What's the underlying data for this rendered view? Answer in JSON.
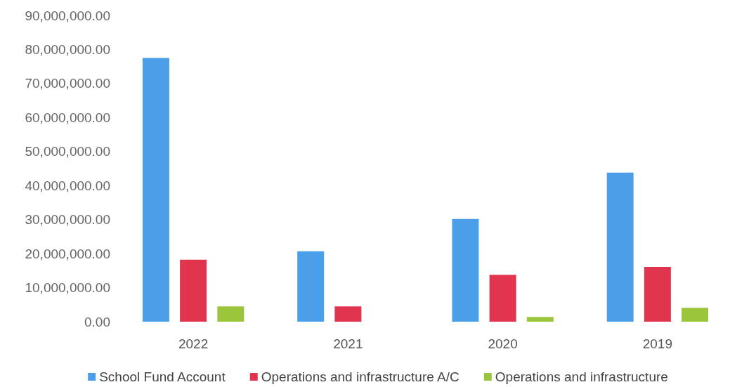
{
  "chart_data": {
    "type": "bar",
    "categories": [
      "2022",
      "2021",
      "2020",
      "2019"
    ],
    "series": [
      {
        "name": "School Fund Account",
        "color": "#4a9fe8",
        "values": [
          77500000,
          20700000,
          30200000,
          43800000
        ]
      },
      {
        "name": "Operations and infrastructure A/C",
        "color": "#e0344f",
        "values": [
          18200000,
          4500000,
          13800000,
          16100000
        ]
      },
      {
        "name": "Operations and infrastructure",
        "color": "#9bc63c",
        "values": [
          4500000,
          null,
          1400000,
          4100000
        ]
      }
    ],
    "ylim": [
      0,
      90000000
    ],
    "yticks": [
      {
        "value": 0,
        "label": "0.00"
      },
      {
        "value": 10000000,
        "label": "10,000,000.00"
      },
      {
        "value": 20000000,
        "label": "20,000,000.00"
      },
      {
        "value": 30000000,
        "label": "30,000,000.00"
      },
      {
        "value": 40000000,
        "label": "40,000,000.00"
      },
      {
        "value": 50000000,
        "label": "50,000,000.00"
      },
      {
        "value": 60000000,
        "label": "60,000,000.00"
      },
      {
        "value": 70000000,
        "label": "70,000,000.00"
      },
      {
        "value": 80000000,
        "label": "80,000,000.00"
      },
      {
        "value": 90000000,
        "label": "90,000,000.00"
      }
    ],
    "grid": false,
    "legend": "bottom"
  }
}
